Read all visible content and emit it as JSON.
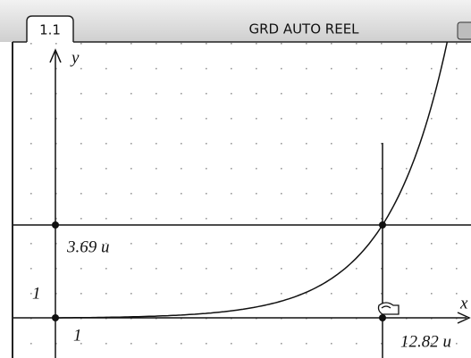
{
  "tab": "1.1",
  "status": "GRD AUTO REEL",
  "graph": {
    "y_axis_label": "y",
    "x_axis_label": "x",
    "point_y_label": "3.69 u",
    "y_unit_label": "1",
    "x_unit_label": "1",
    "point_x_label": "12.82 u"
  }
}
